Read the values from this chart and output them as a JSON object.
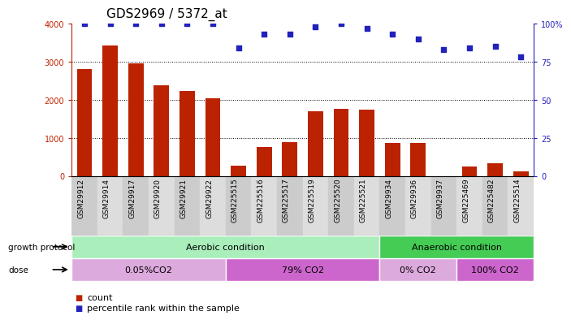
{
  "title": "GDS2969 / 5372_at",
  "samples": [
    "GSM29912",
    "GSM29914",
    "GSM29917",
    "GSM29920",
    "GSM29921",
    "GSM29922",
    "GSM225515",
    "GSM225516",
    "GSM225517",
    "GSM225519",
    "GSM225520",
    "GSM225521",
    "GSM29934",
    "GSM29936",
    "GSM29937",
    "GSM225469",
    "GSM225482",
    "GSM225514"
  ],
  "counts": [
    2800,
    3430,
    2950,
    2380,
    2230,
    2050,
    280,
    760,
    880,
    1700,
    1760,
    1750,
    870,
    870,
    0,
    250,
    330,
    130
  ],
  "percentiles": [
    100,
    100,
    100,
    100,
    100,
    100,
    84,
    93,
    93,
    98,
    100,
    97,
    93,
    90,
    83,
    84,
    85,
    78
  ],
  "bar_color": "#bb2200",
  "dot_color": "#2222bb",
  "ylim_left": [
    0,
    4000
  ],
  "ylim_right": [
    0,
    100
  ],
  "yticks_left": [
    0,
    1000,
    2000,
    3000,
    4000
  ],
  "yticks_right": [
    0,
    25,
    50,
    75,
    100
  ],
  "yticklabels_right": [
    "0",
    "25",
    "50",
    "75",
    "100%"
  ],
  "grid_values": [
    1000,
    2000,
    3000
  ],
  "groups": [
    {
      "label": "Aerobic condition",
      "start": 0,
      "end": 12,
      "color": "#aaeebb"
    },
    {
      "label": "Anaerobic condition",
      "start": 12,
      "end": 18,
      "color": "#44cc55"
    }
  ],
  "doses": [
    {
      "label": "0.05%CO2",
      "start": 0,
      "end": 6,
      "color": "#ddaadd"
    },
    {
      "label": "79% CO2",
      "start": 6,
      "end": 12,
      "color": "#cc66cc"
    },
    {
      "label": "0% CO2",
      "start": 12,
      "end": 15,
      "color": "#ddaadd"
    },
    {
      "label": "100% CO2",
      "start": 15,
      "end": 18,
      "color": "#cc66cc"
    }
  ],
  "growth_protocol_label": "growth protocol",
  "dose_label": "dose",
  "bg_color": "#ffffff",
  "title_fontsize": 11,
  "tick_fontsize": 7,
  "label_fontsize": 6.5,
  "row_fontsize": 8,
  "legend_fontsize": 8
}
